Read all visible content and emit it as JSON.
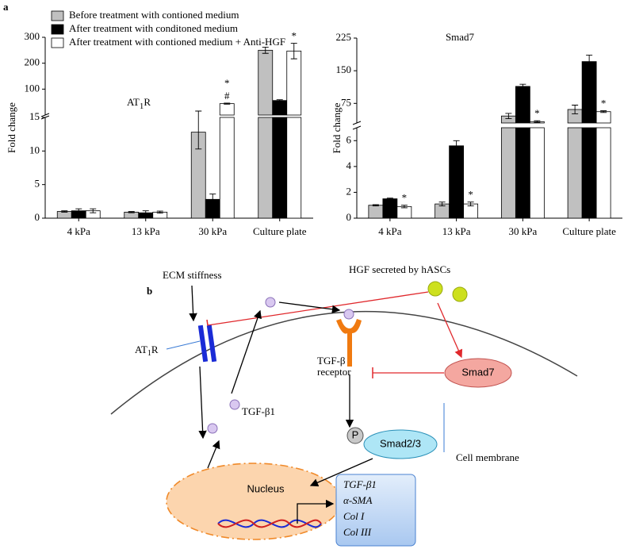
{
  "panel_labels": [
    "a",
    "b"
  ],
  "chart_data": [
    {
      "type": "bar",
      "title": {
        "main": "AT",
        "sub": "1",
        "rest": "R"
      },
      "y_label": "Fold change",
      "categories": [
        "4 kPa",
        "13 kPa",
        "30 kPa",
        "Culture plate"
      ],
      "segments": [
        {
          "ylim": [
            0,
            15
          ],
          "yticks": [
            0,
            5,
            10,
            15
          ]
        },
        {
          "ylim": [
            0,
            300
          ],
          "yticks": [
            100,
            200,
            300
          ]
        }
      ],
      "series": [
        {
          "name": "Before treatment with contioned medium",
          "color": "#c0c0c0",
          "values": [
            1.0,
            0.9,
            12.8,
            250
          ],
          "errors": [
            0.1,
            0.1,
            2.5,
            12
          ]
        },
        {
          "name": "After treatment with conditoned medium",
          "color": "#000000",
          "values": [
            1.1,
            0.8,
            2.8,
            56
          ],
          "errors": [
            0.3,
            0.3,
            0.8,
            3
          ]
        },
        {
          "name": "After treatment with contioned medium + Anti-HGF",
          "color": "#ffffff",
          "values": [
            1.1,
            0.9,
            44,
            247
          ],
          "errors": [
            0.3,
            0.15,
            2,
            30
          ]
        }
      ],
      "annotations": [
        {
          "text": "#",
          "category": 2,
          "series": 2
        },
        {
          "text": "*",
          "category": 2,
          "series": 2
        },
        {
          "text": "*",
          "category": 3,
          "series": 2
        }
      ]
    },
    {
      "type": "bar",
      "title": {
        "main": "Smad7"
      },
      "y_label": "Fold change",
      "categories": [
        "4 kPa",
        "13 kPa",
        "30 kPa",
        "Culture plate"
      ],
      "segments": [
        {
          "ylim": [
            0,
            7
          ],
          "yticks": [
            0,
            2,
            4,
            6
          ]
        },
        {
          "ylim": [
            30,
            225
          ],
          "yticks": [
            75,
            150,
            225
          ]
        }
      ],
      "series": [
        {
          "color": "#c0c0c0",
          "values": [
            1.0,
            1.1,
            46,
            61
          ],
          "errors": [
            0.05,
            0.15,
            6,
            10
          ]
        },
        {
          "color": "#000000",
          "values": [
            1.5,
            5.6,
            114,
            171
          ],
          "errors": [
            0.05,
            0.4,
            5,
            15
          ]
        },
        {
          "color": "#ffffff",
          "values": [
            0.9,
            1.1,
            33,
            56
          ],
          "errors": [
            0.1,
            0.15,
            2,
            2
          ]
        }
      ],
      "annotations": [
        {
          "text": "*",
          "category": 0,
          "series": 2
        },
        {
          "text": "*",
          "category": 1,
          "series": 2
        },
        {
          "text": "*",
          "category": 2,
          "series": 2
        },
        {
          "text": "*",
          "category": 3,
          "series": 2
        }
      ]
    }
  ],
  "diagram": {
    "ecm": "ECM stiffness",
    "hgf": "HGF secreted by hASCs",
    "at1r": {
      "main": "AT",
      "sub": "1",
      "rest": "R"
    },
    "receptor": [
      "TGF-β",
      "receptor"
    ],
    "tgfb1": "TGF-β1",
    "smad7": "Smad7",
    "p": "P",
    "smad23": "Smad2/3",
    "membrane": "Cell membrane",
    "nucleus": "Nucleus",
    "genes": [
      "TGF-β1",
      "α-SMA",
      "Col I",
      "Col III"
    ]
  }
}
